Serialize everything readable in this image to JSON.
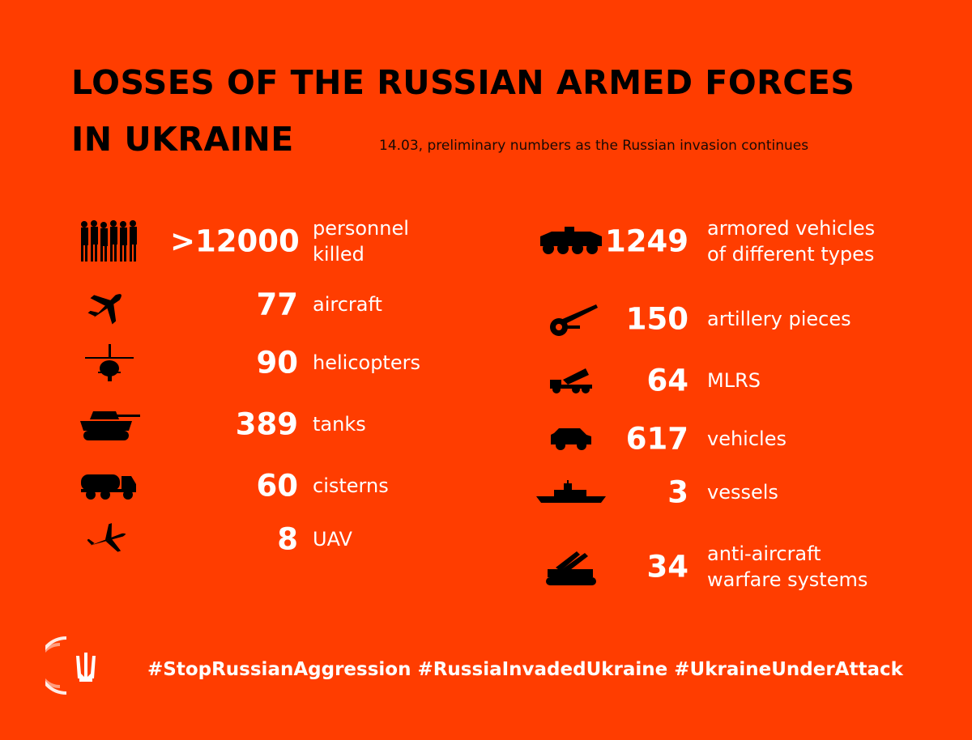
{
  "header": {
    "title_line1": "LOSSES OF THE RUSSIAN ARMED FORCES",
    "title_line2": "IN UKRAINE",
    "subtitle": "14.03, preliminary numbers as the Russian invasion continues"
  },
  "left_stats": [
    {
      "icon": "soldiers-icon",
      "value": ">12000",
      "label_line1": "personnel",
      "label_line2": "killed"
    },
    {
      "icon": "aircraft-icon",
      "value": "77",
      "label_line1": "aircraft",
      "label_line2": ""
    },
    {
      "icon": "helicopter-icon",
      "value": "90",
      "label_line1": "helicopters",
      "label_line2": ""
    },
    {
      "icon": "tank-icon",
      "value": "389",
      "label_line1": "tanks",
      "label_line2": ""
    },
    {
      "icon": "cistern-truck-icon",
      "value": "60",
      "label_line1": "cisterns",
      "label_line2": ""
    },
    {
      "icon": "drone-icon",
      "value": "8",
      "label_line1": "UAV",
      "label_line2": ""
    }
  ],
  "right_stats": [
    {
      "icon": "armored-vehicle-icon",
      "value": "1249",
      "label_line1": "armored vehicles",
      "label_line2": "of different types"
    },
    {
      "icon": "artillery-icon",
      "value": "150",
      "label_line1": "artillery pieces",
      "label_line2": ""
    },
    {
      "icon": "mlrs-icon",
      "value": "64",
      "label_line1": "MLRS",
      "label_line2": ""
    },
    {
      "icon": "car-icon",
      "value": "617",
      "label_line1": "vehicles",
      "label_line2": ""
    },
    {
      "icon": "warship-icon",
      "value": "3",
      "label_line1": "vessels",
      "label_line2": ""
    },
    {
      "icon": "anti-aircraft-icon",
      "value": "34",
      "label_line1": "anti-aircraft",
      "label_line2": "warfare systems"
    }
  ],
  "footer": {
    "hashtags": "#StopRussianAggression #RussiaInvadedUkraine #UkraineUnderAttack",
    "logo_icon": "ukraine-trident-emblem-icon"
  },
  "colors": {
    "background": "#ff3d00",
    "value_text": "#ffffff",
    "title_text": "#000000"
  }
}
